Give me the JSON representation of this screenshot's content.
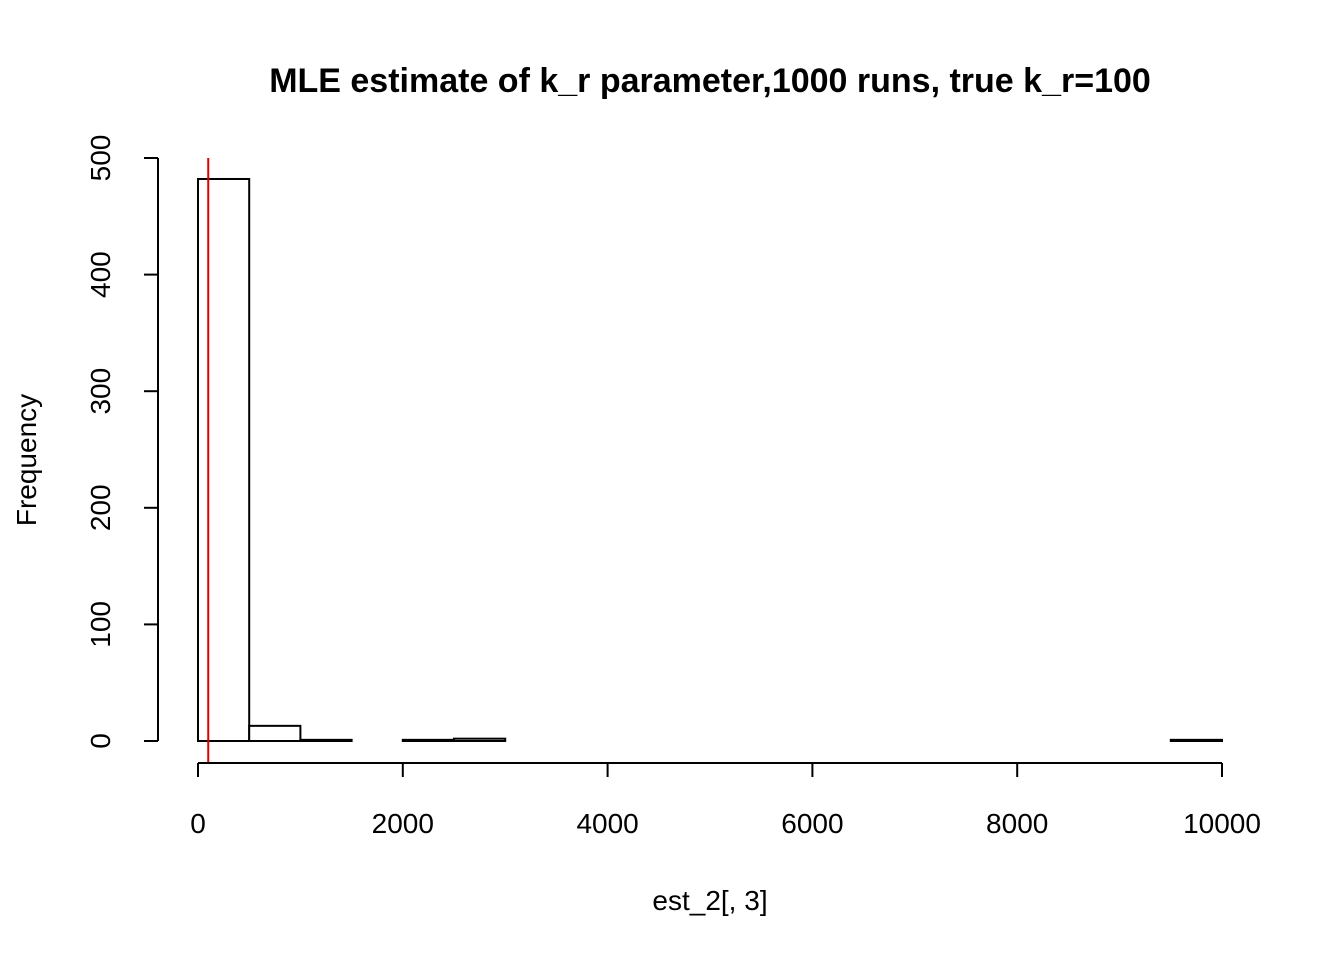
{
  "chart_data": {
    "type": "histogram",
    "title": "MLE estimate of k_r parameter,1000 runs, true k_r=100",
    "xlabel": "est_2[, 3]",
    "ylabel": "Frequency",
    "xlim": [
      0,
      10000
    ],
    "ylim": [
      0,
      500
    ],
    "x_ticks": [
      0,
      2000,
      4000,
      6000,
      8000,
      10000
    ],
    "y_ticks": [
      0,
      100,
      200,
      300,
      400,
      500
    ],
    "bins": [
      {
        "start": 0,
        "end": 500,
        "count": 482
      },
      {
        "start": 500,
        "end": 1000,
        "count": 13
      },
      {
        "start": 1000,
        "end": 1500,
        "count": 1
      },
      {
        "start": 1500,
        "end": 2000,
        "count": 0
      },
      {
        "start": 2000,
        "end": 2500,
        "count": 1
      },
      {
        "start": 2500,
        "end": 3000,
        "count": 2
      },
      {
        "start": 3000,
        "end": 3500,
        "count": 0
      },
      {
        "start": 3500,
        "end": 4000,
        "count": 0
      },
      {
        "start": 4000,
        "end": 4500,
        "count": 0
      },
      {
        "start": 4500,
        "end": 5000,
        "count": 0
      },
      {
        "start": 5000,
        "end": 5500,
        "count": 0
      },
      {
        "start": 5500,
        "end": 6000,
        "count": 0
      },
      {
        "start": 6000,
        "end": 6500,
        "count": 0
      },
      {
        "start": 6500,
        "end": 7000,
        "count": 0
      },
      {
        "start": 7000,
        "end": 7500,
        "count": 0
      },
      {
        "start": 7500,
        "end": 8000,
        "count": 0
      },
      {
        "start": 8000,
        "end": 8500,
        "count": 0
      },
      {
        "start": 8500,
        "end": 9000,
        "count": 0
      },
      {
        "start": 9000,
        "end": 9500,
        "count": 0
      },
      {
        "start": 9500,
        "end": 10000,
        "count": 1
      }
    ],
    "reference_line": {
      "x": 100,
      "color": "#dd0000"
    },
    "grid": false
  }
}
